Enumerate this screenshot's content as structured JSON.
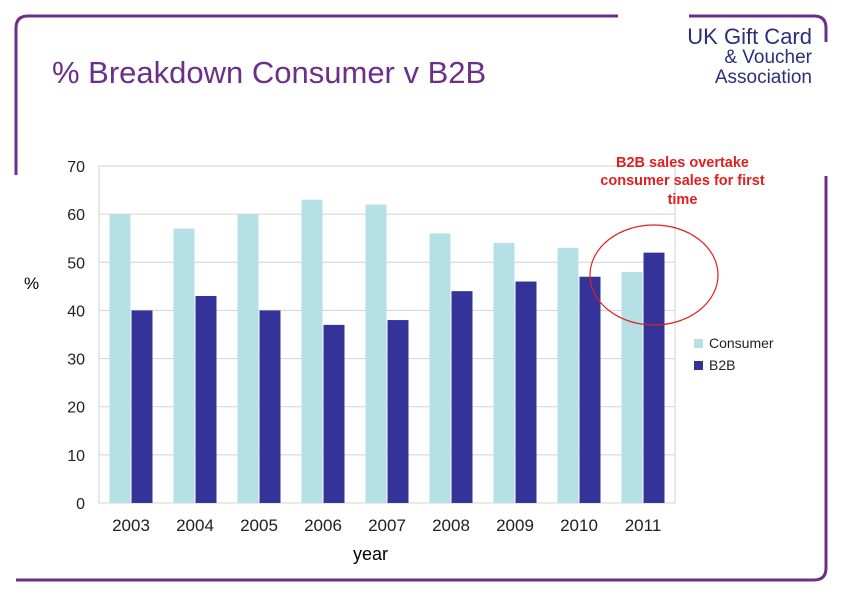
{
  "slide": {
    "title": "% Breakdown Consumer v B2B"
  },
  "logo": {
    "line1": "UK Gift Card",
    "line2": "& Voucher",
    "line3": "Association",
    "color": "#2b2f7a"
  },
  "chart_data": {
    "type": "bar",
    "title": "",
    "xlabel": "year",
    "ylabel": "%",
    "categories": [
      "2003",
      "2004",
      "2005",
      "2006",
      "2007",
      "2008",
      "2009",
      "2010",
      "2011"
    ],
    "series": [
      {
        "name": "Consumer",
        "color": "#b4e0e6",
        "values": [
          60,
          57,
          60,
          63,
          62,
          56,
          54,
          53,
          48
        ]
      },
      {
        "name": "B2B",
        "color": "#333399",
        "values": [
          40,
          43,
          40,
          37,
          38,
          44,
          46,
          47,
          52
        ]
      }
    ],
    "ylim": [
      0,
      70
    ],
    "yticks": [
      0,
      10,
      20,
      30,
      40,
      50,
      60,
      70
    ],
    "grid": true,
    "legend": "right",
    "annotation": {
      "text": "B2B sales overtake consumer sales for first time",
      "color": "#e02020",
      "target_category": "2011"
    }
  },
  "colors": {
    "accent": "#6b2f8a",
    "frame": "#6b2f8a"
  }
}
